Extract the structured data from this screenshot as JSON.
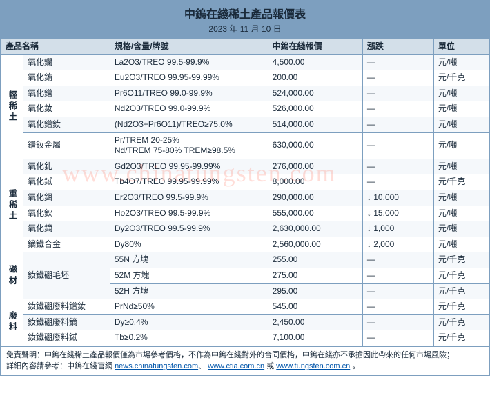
{
  "title": "中鎢在綫稀土產品報價表",
  "date": "2023 年 11 月 10 日",
  "headers": {
    "name": "產品名稱",
    "spec": "規格/含量/牌號",
    "price": "中鎢在綫報價",
    "change": "漲跌",
    "unit": "單位"
  },
  "groups": [
    {
      "cat": "輕稀土",
      "rows": [
        {
          "name": "氧化鑭",
          "spec": "La2O3/TREO 99.5-99.9%",
          "price": "4,500.00",
          "change": "—",
          "unit": "元/噸"
        },
        {
          "name": "氧化銪",
          "spec": "Eu2O3/TREO 99.95-99.99%",
          "price": "200.00",
          "change": "—",
          "unit": "元/千克"
        },
        {
          "name": "氧化鐠",
          "spec": "Pr6O11/TREO 99.0-99.9%",
          "price": "524,000.00",
          "change": "—",
          "unit": "元/噸"
        },
        {
          "name": "氧化釹",
          "spec": "Nd2O3/TREO 99.0-99.9%",
          "price": "526,000.00",
          "change": "—",
          "unit": "元/噸"
        },
        {
          "name": "氧化鐠釹",
          "spec": "(Nd2O3+Pr6O11)/TREO≥75.0%",
          "price": "514,000.00",
          "change": "—",
          "unit": "元/噸"
        },
        {
          "name": "鐠釹金屬",
          "spec": "Pr/TREM 20-25%\nNd/TREM 75-80% TREM≥98.5%",
          "price": "630,000.00",
          "change": "—",
          "unit": "元/噸"
        }
      ]
    },
    {
      "cat": "重稀土",
      "rows": [
        {
          "name": "氧化釓",
          "spec": "Gd2O3/TREO 99.95-99.99%",
          "price": "276,000.00",
          "change": "—",
          "unit": "元/噸"
        },
        {
          "name": "氧化鋱",
          "spec": "Tb4O7/TREO 99.95-99.99%",
          "price": "8,000.00",
          "change": "—",
          "unit": "元/千克"
        },
        {
          "name": "氧化鉺",
          "spec": "Er2O3/TREO 99.5-99.9%",
          "price": "290,000.00",
          "change": "↓ 10,000",
          "unit": "元/噸"
        },
        {
          "name": "氧化鈥",
          "spec": "Ho2O3/TREO 99.5-99.9%",
          "price": "555,000.00",
          "change": "↓ 15,000",
          "unit": "元/噸"
        },
        {
          "name": "氧化鏑",
          "spec": "Dy2O3/TREO 99.5-99.9%",
          "price": "2,630,000.00",
          "change": "↓ 1,000",
          "unit": "元/噸"
        },
        {
          "name": "鏑鐵合金",
          "spec": "Dy80%",
          "price": "2,560,000.00",
          "change": "↓ 2,000",
          "unit": "元/噸"
        }
      ]
    },
    {
      "cat": "磁材",
      "rows": [
        {
          "name": "釹鐵硼毛坯",
          "nameRowspan": 3,
          "spec": "55N 方塊",
          "price": "255.00",
          "change": "—",
          "unit": "元/千克"
        },
        {
          "spec": "52M 方塊",
          "price": "275.00",
          "change": "—",
          "unit": "元/千克"
        },
        {
          "spec": "52H 方塊",
          "price": "295.00",
          "change": "—",
          "unit": "元/千克"
        }
      ]
    },
    {
      "cat": "廢料",
      "rows": [
        {
          "name": "釹鐵硼廢料鐠釹",
          "spec": "PrNd≥50%",
          "price": "545.00",
          "change": "—",
          "unit": "元/千克"
        },
        {
          "name": "釹鐵硼廢料鏑",
          "spec": "Dy≥0.4%",
          "price": "2,450.00",
          "change": "—",
          "unit": "元/千克"
        },
        {
          "name": "釹鐵硼廢料鋱",
          "spec": "Tb≥0.2%",
          "price": "7,100.00",
          "change": "—",
          "unit": "元/千克"
        }
      ]
    }
  ],
  "footer": {
    "disclaimer": "免責聲明：中鎢在綫稀土產品報價僅為市場參考價格，不作為中鎢在綫對外的合同價格，中鎢在綫亦不承擔因此帶來的任何市場風險；",
    "detail_prefix": "詳細內容請參考：中鎢在綫官網 ",
    "link1": "news.chinatungsten.com",
    "link2": "www.ctia.com.cn",
    "link3": "www.tungsten.com.cn",
    "sep_or": " 或 ",
    "period": "。"
  },
  "watermark": "www.chinatungsten.com"
}
